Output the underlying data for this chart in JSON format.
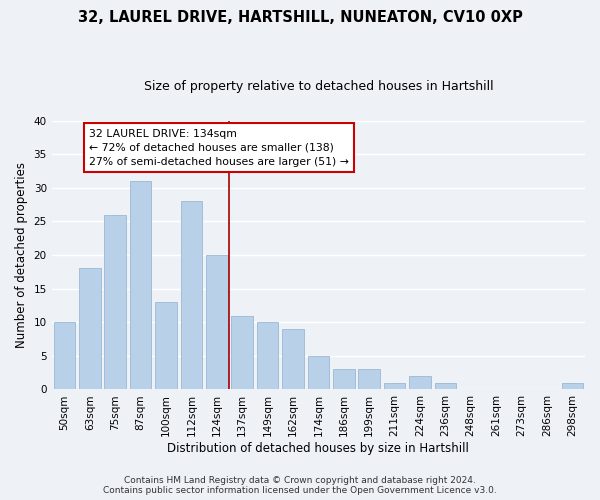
{
  "title": "32, LAUREL DRIVE, HARTSHILL, NUNEATON, CV10 0XP",
  "subtitle": "Size of property relative to detached houses in Hartshill",
  "xlabel": "Distribution of detached houses by size in Hartshill",
  "ylabel": "Number of detached properties",
  "bar_labels": [
    "50sqm",
    "63sqm",
    "75sqm",
    "87sqm",
    "100sqm",
    "112sqm",
    "124sqm",
    "137sqm",
    "149sqm",
    "162sqm",
    "174sqm",
    "186sqm",
    "199sqm",
    "211sqm",
    "224sqm",
    "236sqm",
    "248sqm",
    "261sqm",
    "273sqm",
    "286sqm",
    "298sqm"
  ],
  "bar_values": [
    10,
    18,
    26,
    31,
    13,
    28,
    20,
    11,
    10,
    9,
    5,
    3,
    3,
    1,
    2,
    1,
    0,
    0,
    0,
    0,
    1
  ],
  "bar_color": "#b8d0e8",
  "bar_edge_color": "#99b8d4",
  "vline_x": 6.5,
  "vline_color": "#aa0000",
  "annotation_title": "32 LAUREL DRIVE: 134sqm",
  "annotation_line1": "← 72% of detached houses are smaller (138)",
  "annotation_line2": "27% of semi-detached houses are larger (51) →",
  "annotation_box_facecolor": "#ffffff",
  "annotation_box_edgecolor": "#cc0000",
  "ylim": [
    0,
    40
  ],
  "yticks": [
    0,
    5,
    10,
    15,
    20,
    25,
    30,
    35,
    40
  ],
  "footer1": "Contains HM Land Registry data © Crown copyright and database right 2024.",
  "footer2": "Contains public sector information licensed under the Open Government Licence v3.0.",
  "bg_color": "#eef2f7",
  "grid_color": "#ffffff",
  "title_fontsize": 10.5,
  "subtitle_fontsize": 9,
  "tick_fontsize": 7.5,
  "axis_label_fontsize": 8.5,
  "footer_fontsize": 6.5
}
